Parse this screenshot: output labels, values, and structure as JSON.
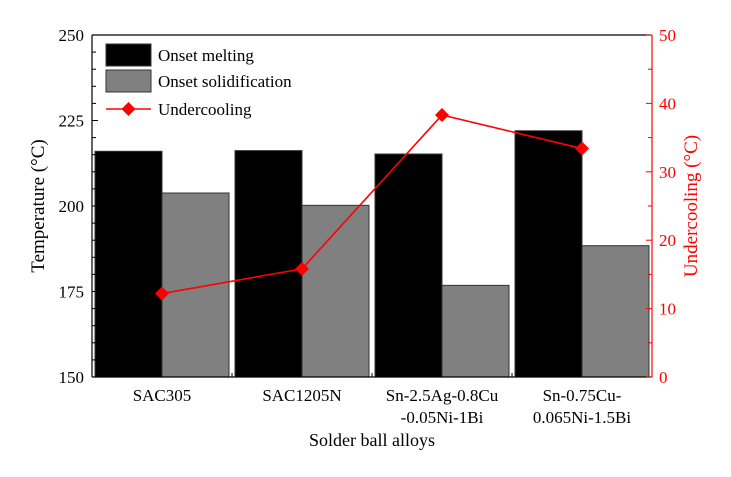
{
  "chart_data": {
    "type": "bar",
    "categories": [
      [
        "SAC305"
      ],
      [
        "SAC1205N"
      ],
      [
        "Sn-2.5Ag-0.8Cu",
        "-0.05Ni-1Bi"
      ],
      [
        "Sn-0.75Cu-",
        "0.065Ni-1.5Bi"
      ]
    ],
    "series": [
      {
        "name": "Onset melting",
        "type": "bar",
        "axis": "left",
        "color": "#000000",
        "values": [
          216.0,
          216.2,
          215.2,
          222.0
        ]
      },
      {
        "name": "Onset solidification",
        "type": "bar",
        "axis": "left",
        "color": "#808080",
        "values": [
          203.8,
          200.2,
          176.8,
          188.4
        ]
      },
      {
        "name": "Undercooling",
        "type": "line",
        "axis": "right",
        "color": "#ff0000",
        "marker": "diamond",
        "values": [
          12.2,
          15.8,
          38.3,
          33.4
        ]
      }
    ],
    "xlabel": "Solder ball alloys",
    "ylabel": "Temperature (°C)",
    "y2label": "Undercooling (°C)",
    "ylim": [
      150,
      250
    ],
    "y2lim": [
      0,
      50
    ],
    "yticks": [
      "150",
      "175",
      "200",
      "225",
      "250"
    ],
    "y2ticks": [
      "0",
      "10",
      "20",
      "30",
      "40",
      "50"
    ],
    "legend": "top-left",
    "grid": false
  }
}
